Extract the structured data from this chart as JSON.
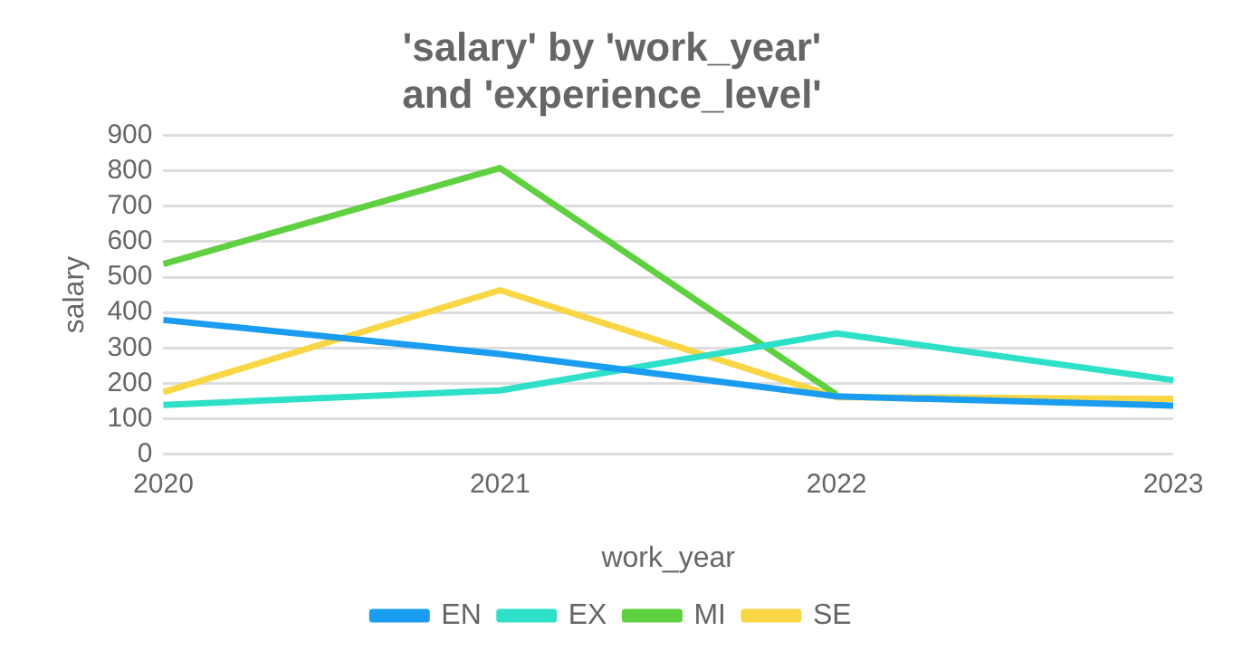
{
  "chart_data": {
    "type": "line",
    "title": "'salary' by 'work_year' and 'experience_level'",
    "xlabel": "work_year",
    "ylabel": "salary",
    "categories": [
      "2020",
      "2021",
      "2022",
      "2023"
    ],
    "ylim": [
      0,
      900
    ],
    "yticks": [
      0,
      100,
      200,
      300,
      400,
      500,
      600,
      700,
      800,
      900
    ],
    "grid": "y",
    "legend": "bottom",
    "marker": "none",
    "line_style": "solid",
    "series": [
      {
        "name": "EN",
        "color": "#1a9cf0",
        "values": [
          379,
          283,
          163,
          137
        ]
      },
      {
        "name": "EX",
        "color": "#2ee0c8",
        "values": [
          139,
          180,
          341,
          209
        ]
      },
      {
        "name": "MI",
        "color": "#5fd040",
        "values": [
          537,
          808,
          168,
          null
        ]
      },
      {
        "name": "SE",
        "color": "#f9d645",
        "values": [
          175,
          463,
          161,
          156
        ]
      }
    ]
  }
}
